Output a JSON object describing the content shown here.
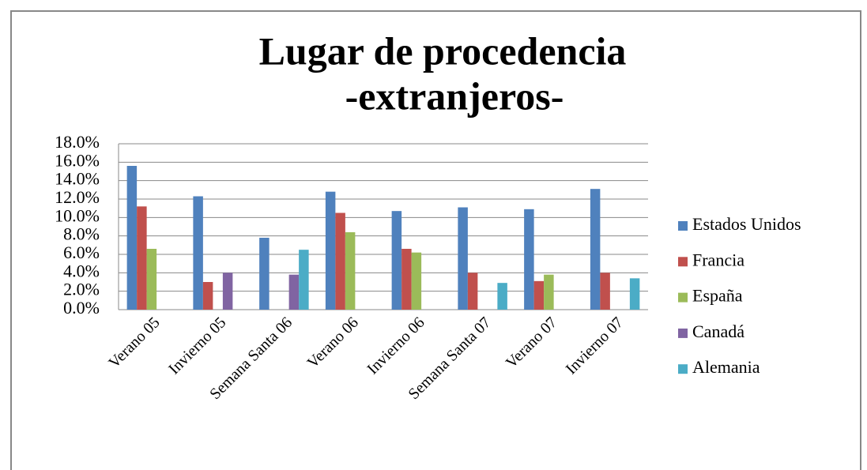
{
  "chart_data": {
    "type": "bar",
    "title": "Lugar de procedencia",
    "subtitle": "-extranjeros-",
    "categories": [
      "Verano 05",
      "Invierno 05",
      "Semana Santa 06",
      "Verano 06",
      "Invierno 06",
      "Semana Santa 07",
      "Verano 07",
      "Invierno 07"
    ],
    "series": [
      {
        "name": "Estados Unidos",
        "color": "#4f81bd",
        "values": [
          15.6,
          12.3,
          7.8,
          12.8,
          10.7,
          11.1,
          10.9,
          13.1
        ]
      },
      {
        "name": "Francia",
        "color": "#c0504d",
        "values": [
          11.2,
          3.0,
          0,
          10.5,
          6.6,
          4.0,
          3.1,
          4.0
        ]
      },
      {
        "name": "España",
        "color": "#9bbb59",
        "values": [
          6.6,
          0,
          0,
          8.4,
          6.2,
          0,
          3.8,
          0
        ]
      },
      {
        "name": "Canadá",
        "color": "#8064a2",
        "values": [
          0,
          4.0,
          3.8,
          0,
          0,
          0,
          0,
          0
        ]
      },
      {
        "name": "Alemania",
        "color": "#4bacc6",
        "values": [
          0,
          0,
          6.5,
          0,
          0,
          2.9,
          0,
          3.4
        ]
      }
    ],
    "ylim": [
      0,
      18
    ],
    "yticks": [
      {
        "value": 0,
        "label": "0.0%"
      },
      {
        "value": 2,
        "label": "2.0%"
      },
      {
        "value": 4,
        "label": "4.0%"
      },
      {
        "value": 6,
        "label": "6.0%"
      },
      {
        "value": 8,
        "label": "8.0%"
      },
      {
        "value": 10,
        "label": "10.0%"
      },
      {
        "value": 12,
        "label": "12.0%"
      },
      {
        "value": 14,
        "label": "14.0%"
      },
      {
        "value": 16,
        "label": "16.0%"
      },
      {
        "value": 18,
        "label": "18.0%"
      }
    ],
    "grid": true,
    "legend": "right"
  }
}
